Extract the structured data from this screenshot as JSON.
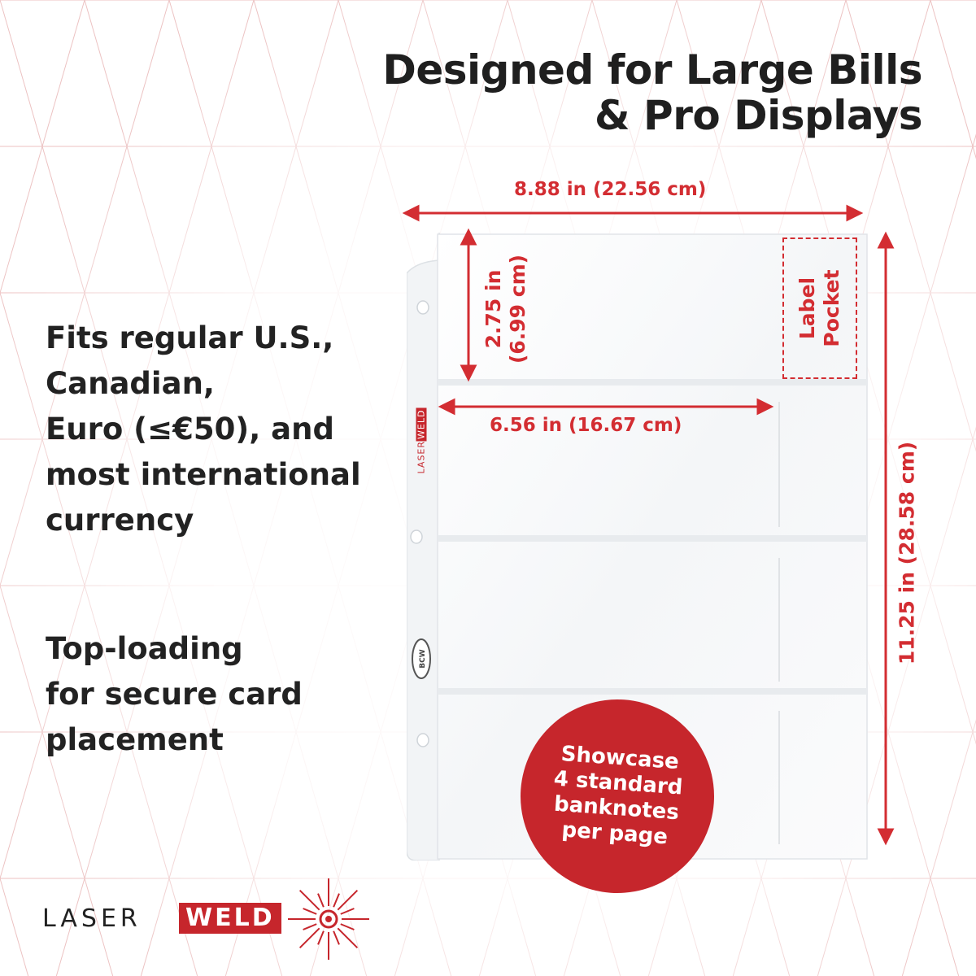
{
  "headline": {
    "line1": "Designed for Large Bills",
    "line2": "& Pro Displays"
  },
  "features": {
    "fits": [
      "Fits regular U.S.,",
      "Canadian,",
      "Euro (≤€50), and",
      "most international",
      "currency"
    ],
    "loading": [
      "Top-loading",
      "for secure card",
      "placement"
    ]
  },
  "dimensions": {
    "width": "8.88 in (22.56 cm)",
    "height": "11.25 in (28.58 cm)",
    "pocket_height_line1": "2.75 in",
    "pocket_height_line2": "(6.99 cm)",
    "pocket_width": "6.56 in (16.67 cm)"
  },
  "label_pocket": {
    "line1": "Label",
    "line2": "Pocket"
  },
  "badge": [
    "Showcase",
    "4 standard",
    "banknotes",
    "per page"
  ],
  "sheet_marks": {
    "side_logo_laser": "LASER",
    "side_logo_weld": "WELD",
    "bcw": "BCW"
  },
  "brand": {
    "laser": "LASER",
    "weld": "WELD"
  },
  "colors": {
    "accent": "#c6262c",
    "text": "#222222",
    "pattern": "#e8b4b4"
  }
}
